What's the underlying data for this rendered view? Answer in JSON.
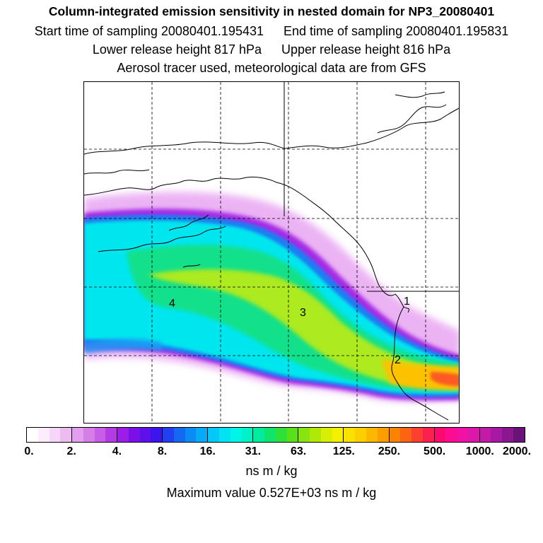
{
  "header": {
    "title": "Column-integrated emission sensitivity in nested domain for NP3_20080401",
    "start_label": "Start time of sampling 20080401.195431",
    "end_label": "End time of sampling 20080401.195831",
    "lower_label": "Lower release height  817 hPa",
    "upper_label": "Upper release height  816 hPa",
    "tracer_note": "Aerosol tracer used, meteorological data are from GFS"
  },
  "map": {
    "point_labels": [
      "4",
      "3",
      "2",
      "1"
    ]
  },
  "colorbar": {
    "tick_labels": [
      "0.",
      "2.",
      "4.",
      "8.",
      "16.",
      "31.",
      "63.",
      "125.",
      "250.",
      "500.",
      "1000.",
      "2000."
    ],
    "colors": [
      "#ffffff",
      "#fcecfc",
      "#f6d6f8",
      "#eebaf2",
      "#e49eee",
      "#d67ee8",
      "#c85ee6",
      "#b43ae6",
      "#9a1de8",
      "#7b10e6",
      "#5d10ea",
      "#3d14ee",
      "#2240f0",
      "#1468f2",
      "#0a8cf4",
      "#06aaf6",
      "#04c8f6",
      "#02e2f2",
      "#00f4e8",
      "#00f2c8",
      "#00ec9e",
      "#10e46a",
      "#30e038",
      "#58e018",
      "#86e410",
      "#b0e808",
      "#d8ee04",
      "#f4f000",
      "#fae200",
      "#fcd000",
      "#fcb800",
      "#fc9e00",
      "#fc8200",
      "#fc6414",
      "#fc4030",
      "#fc2050",
      "#fc0a70",
      "#fc0c90",
      "#f012a4",
      "#dc18aa",
      "#c41aa8",
      "#a818a2",
      "#8a1690",
      "#6a1278"
    ],
    "unit_label": "ns m / kg"
  },
  "footer": {
    "max_value_label": "Maximum value  0.527E+03 ns m / kg"
  }
}
